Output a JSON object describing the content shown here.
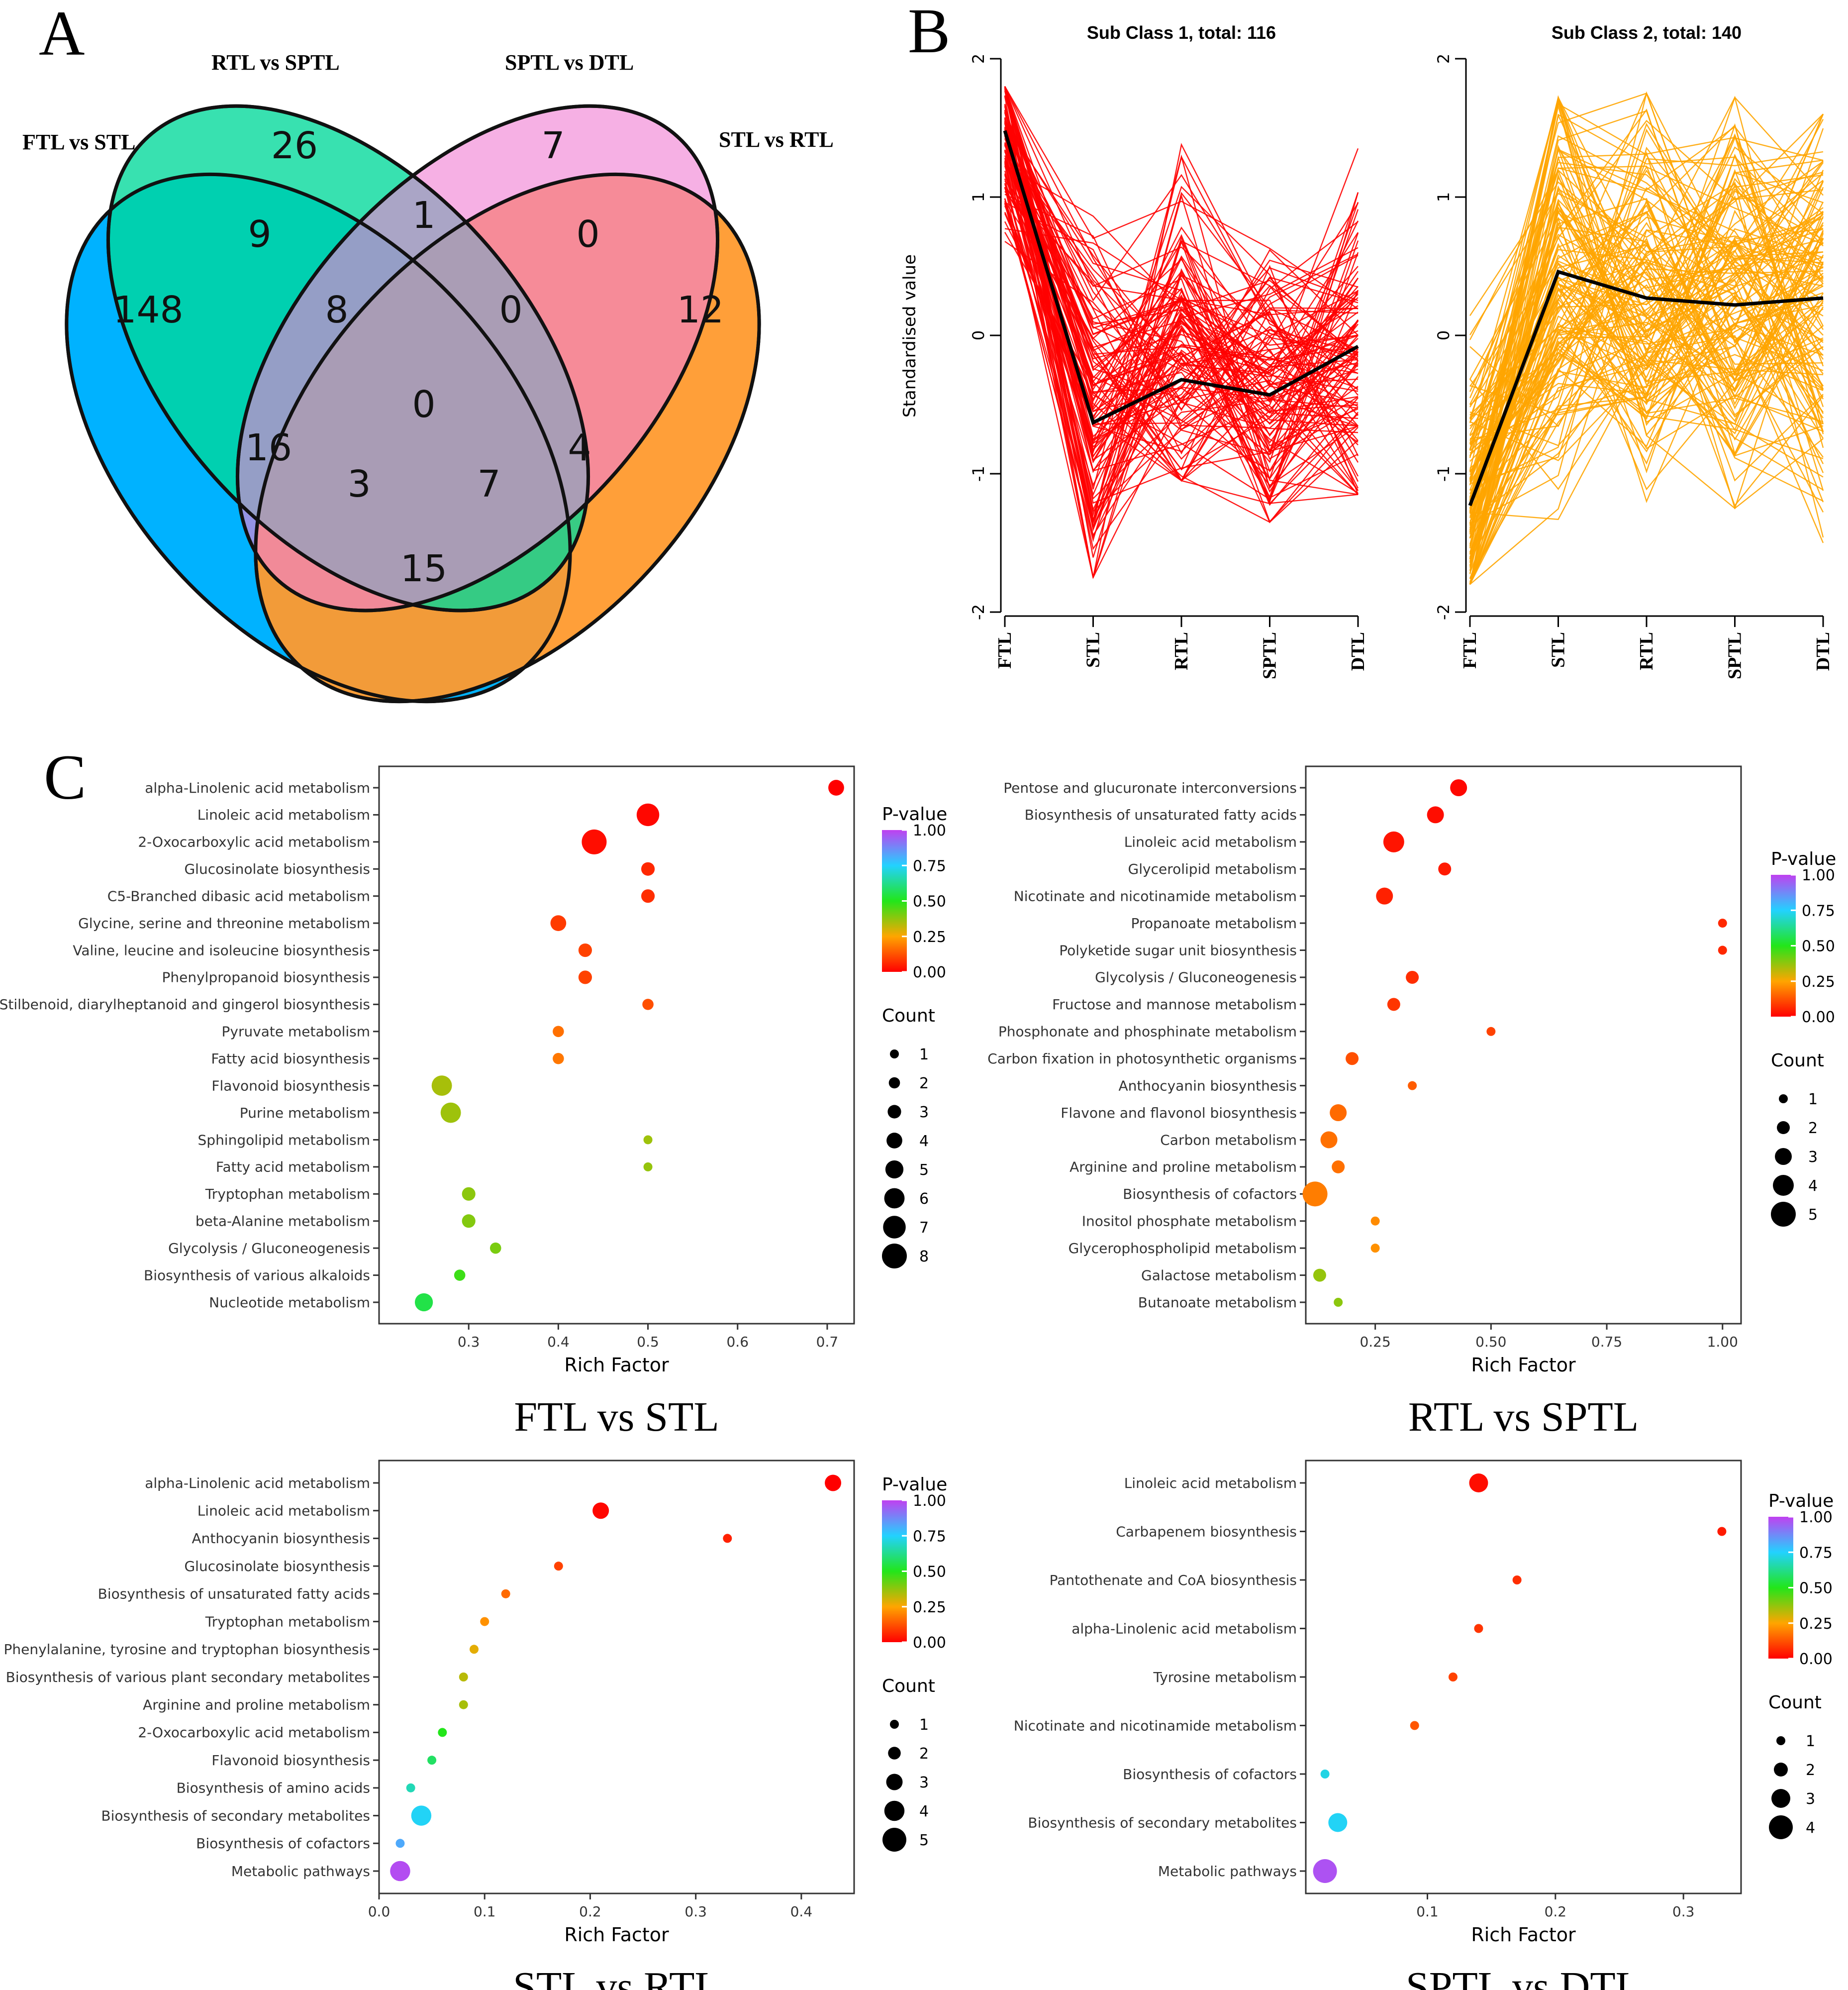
{
  "panel_labels": {
    "a": "A",
    "b": "B",
    "c": "C"
  },
  "venn": {
    "sets": [
      {
        "name": "FTL vs STL",
        "color": "#00b2ff"
      },
      {
        "name": "RTL vs SPTL",
        "color": "#00d99a"
      },
      {
        "name": "SPTL vs DTL",
        "color": "#f07fd3"
      },
      {
        "name": "STL vs RTL",
        "color": "#ff9a2e"
      }
    ],
    "counts": [
      "148",
      "26",
      "7",
      "12",
      "9",
      "1",
      "0",
      "8",
      "0",
      "0",
      "16",
      "4",
      "3",
      "7",
      "15"
    ]
  },
  "chart_data": [
    {
      "type": "line",
      "title": "Sub Class 1, total: 116",
      "ylabel": "Standardised value",
      "categories": [
        "FTL",
        "STL",
        "RTL",
        "SPTL",
        "DTL"
      ],
      "ylim": [
        -2,
        2
      ],
      "yticks": [
        "-2",
        "-1",
        "0",
        "1",
        "2"
      ],
      "line_color": "#ff0000",
      "n_lines": 116,
      "mean": [
        1.48,
        -0.63,
        -0.32,
        -0.43,
        -0.08
      ],
      "envelope": {
        "min": [
          0.6,
          -1.75,
          -1.05,
          -1.35,
          -1.15
        ],
        "max": [
          1.8,
          0.9,
          1.48,
          0.7,
          1.45
        ]
      }
    },
    {
      "type": "line",
      "title": "Sub Class 2, total: 140",
      "ylabel": "",
      "categories": [
        "FTL",
        "STL",
        "RTL",
        "SPTL",
        "DTL"
      ],
      "ylim": [
        -2,
        2
      ],
      "yticks": [
        "-2",
        "-1",
        "0",
        "1",
        "2"
      ],
      "line_color": "#ffa500",
      "n_lines": 140,
      "mean": [
        -1.23,
        0.46,
        0.27,
        0.22,
        0.27
      ],
      "envelope": {
        "min": [
          -1.8,
          -1.45,
          -1.2,
          -1.25,
          -1.5
        ],
        "max": [
          0.3,
          1.72,
          1.75,
          1.72,
          1.6
        ]
      }
    },
    {
      "type": "scatter",
      "title": "FTL vs STL",
      "xlabel": "Rich Factor",
      "xlim": [
        0.2,
        0.73
      ],
      "xticks": [
        0.3,
        0.4,
        0.5,
        0.6,
        0.7
      ],
      "xtick_labels": [
        "0.3",
        "0.4",
        "0.5",
        "0.6",
        "0.7"
      ],
      "legend_pvalue": {
        "title": "P-value",
        "ticks": [
          "1.00",
          "0.75",
          "0.50",
          "0.25",
          "0.00"
        ]
      },
      "legend_count": {
        "title": "Count",
        "values": [
          "1",
          "2",
          "3",
          "4",
          "5",
          "6",
          "7",
          "8"
        ]
      },
      "count_max": 8,
      "points": [
        {
          "term": "alpha-Linolenic acid metabolism",
          "x": 0.71,
          "count": 4,
          "p": 0.0
        },
        {
          "term": "Linoleic acid metabolism",
          "x": 0.5,
          "count": 7,
          "p": 0.01
        },
        {
          "term": "2-Oxocarboxylic acid metabolism",
          "x": 0.44,
          "count": 8,
          "p": 0.02
        },
        {
          "term": "Glucosinolate biosynthesis",
          "x": 0.5,
          "count": 3,
          "p": 0.06
        },
        {
          "term": "C5-Branched dibasic acid metabolism",
          "x": 0.5,
          "count": 3,
          "p": 0.07
        },
        {
          "term": "Glycine, serine and threonine metabolism",
          "x": 0.4,
          "count": 4,
          "p": 0.09
        },
        {
          "term": "Valine, leucine and isoleucine biosynthesis",
          "x": 0.43,
          "count": 3,
          "p": 0.1
        },
        {
          "term": "Phenylpropanoid biosynthesis",
          "x": 0.43,
          "count": 3,
          "p": 0.1
        },
        {
          "term": "Stilbenoid, diarylheptanoid and gingerol biosynthesis",
          "x": 0.5,
          "count": 2,
          "p": 0.12
        },
        {
          "term": "Pyruvate metabolism",
          "x": 0.4,
          "count": 2,
          "p": 0.17
        },
        {
          "term": "Fatty acid biosynthesis",
          "x": 0.4,
          "count": 2,
          "p": 0.18
        },
        {
          "term": "Flavonoid biosynthesis",
          "x": 0.27,
          "count": 6,
          "p": 0.35
        },
        {
          "term": "Purine metabolism",
          "x": 0.28,
          "count": 6,
          "p": 0.36
        },
        {
          "term": "Sphingolipid metabolism",
          "x": 0.5,
          "count": 1,
          "p": 0.36
        },
        {
          "term": "Fatty acid metabolism",
          "x": 0.5,
          "count": 1,
          "p": 0.37
        },
        {
          "term": "Tryptophan metabolism",
          "x": 0.3,
          "count": 3,
          "p": 0.38
        },
        {
          "term": "beta-Alanine metabolism",
          "x": 0.3,
          "count": 3,
          "p": 0.39
        },
        {
          "term": "Glycolysis / Gluconeogenesis",
          "x": 0.33,
          "count": 2,
          "p": 0.4
        },
        {
          "term": "Biosynthesis of various alkaloids",
          "x": 0.29,
          "count": 2,
          "p": 0.47
        },
        {
          "term": "Nucleotide metabolism",
          "x": 0.25,
          "count": 5,
          "p": 0.55
        }
      ]
    },
    {
      "type": "scatter",
      "title": "RTL vs SPTL",
      "xlabel": "Rich Factor",
      "xlim": [
        0.1,
        1.04
      ],
      "xticks": [
        0.25,
        0.5,
        0.75,
        1.0
      ],
      "xtick_labels": [
        "0.25",
        "0.50",
        "0.75",
        "1.00"
      ],
      "legend_pvalue": {
        "title": "P-value",
        "ticks": [
          "1.00",
          "0.75",
          "0.50",
          "0.25",
          "0.00"
        ]
      },
      "legend_count": {
        "title": "Count",
        "values": [
          "1",
          "2",
          "3",
          "4",
          "5"
        ]
      },
      "count_max": 5,
      "points": [
        {
          "term": "Pentose and glucuronate interconversions",
          "x": 0.43,
          "count": 3,
          "p": 0.01
        },
        {
          "term": "Biosynthesis of unsaturated fatty acids",
          "x": 0.38,
          "count": 3,
          "p": 0.02
        },
        {
          "term": "Linoleic acid metabolism",
          "x": 0.29,
          "count": 4,
          "p": 0.03
        },
        {
          "term": "Glycerolipid metabolism",
          "x": 0.4,
          "count": 2,
          "p": 0.04
        },
        {
          "term": "Nicotinate and nicotinamide metabolism",
          "x": 0.27,
          "count": 3,
          "p": 0.05
        },
        {
          "term": "Propanoate metabolism",
          "x": 1.0,
          "count": 1,
          "p": 0.06
        },
        {
          "term": "Polyketide sugar unit biosynthesis",
          "x": 1.0,
          "count": 1,
          "p": 0.06
        },
        {
          "term": "Glycolysis / Gluconeogenesis",
          "x": 0.33,
          "count": 2,
          "p": 0.07
        },
        {
          "term": "Fructose and mannose metabolism",
          "x": 0.29,
          "count": 2,
          "p": 0.08
        },
        {
          "term": "Phosphonate and phosphinate metabolism",
          "x": 0.5,
          "count": 1,
          "p": 0.1
        },
        {
          "term": "Carbon fixation in photosynthetic organisms",
          "x": 0.2,
          "count": 2,
          "p": 0.12
        },
        {
          "term": "Anthocyanin biosynthesis",
          "x": 0.33,
          "count": 1,
          "p": 0.14
        },
        {
          "term": "Flavone and flavonol biosynthesis",
          "x": 0.17,
          "count": 3,
          "p": 0.16
        },
        {
          "term": "Carbon metabolism",
          "x": 0.15,
          "count": 3,
          "p": 0.17
        },
        {
          "term": "Arginine and proline metabolism",
          "x": 0.17,
          "count": 2,
          "p": 0.17
        },
        {
          "term": "Biosynthesis of cofactors",
          "x": 0.12,
          "count": 5,
          "p": 0.19
        },
        {
          "term": "Inositol phosphate metabolism",
          "x": 0.25,
          "count": 1,
          "p": 0.21
        },
        {
          "term": "Glycerophospholipid metabolism",
          "x": 0.25,
          "count": 1,
          "p": 0.22
        },
        {
          "term": "Galactose metabolism",
          "x": 0.13,
          "count": 2,
          "p": 0.37
        },
        {
          "term": "Butanoate metabolism",
          "x": 0.17,
          "count": 1,
          "p": 0.38
        }
      ]
    },
    {
      "type": "scatter",
      "title": "STL vs RTL",
      "xlabel": "Rich Factor",
      "xlim": [
        0.0,
        0.45
      ],
      "xticks": [
        0.0,
        0.1,
        0.2,
        0.3,
        0.4
      ],
      "xtick_labels": [
        "0.0",
        "0.1",
        "0.2",
        "0.3",
        "0.4"
      ],
      "legend_pvalue": {
        "title": "P-value",
        "ticks": [
          "1.00",
          "0.75",
          "0.50",
          "0.25",
          "0.00"
        ]
      },
      "legend_count": {
        "title": "Count",
        "values": [
          "1",
          "2",
          "3",
          "4",
          "5"
        ]
      },
      "count_max": 5,
      "points": [
        {
          "term": "alpha-Linolenic acid metabolism",
          "x": 0.43,
          "count": 3,
          "p": 0.0
        },
        {
          "term": "Linoleic acid metabolism",
          "x": 0.21,
          "count": 3,
          "p": 0.01
        },
        {
          "term": "Anthocyanin biosynthesis",
          "x": 0.33,
          "count": 1,
          "p": 0.05
        },
        {
          "term": "Glucosinolate biosynthesis",
          "x": 0.17,
          "count": 1,
          "p": 0.1
        },
        {
          "term": "Biosynthesis of unsaturated fatty acids",
          "x": 0.12,
          "count": 1,
          "p": 0.16
        },
        {
          "term": "Tryptophan metabolism",
          "x": 0.1,
          "count": 1,
          "p": 0.22
        },
        {
          "term": "Phenylalanine, tyrosine and tryptophan biosynthesis",
          "x": 0.09,
          "count": 1,
          "p": 0.28
        },
        {
          "term": "Biosynthesis of various plant secondary metabolites",
          "x": 0.08,
          "count": 1,
          "p": 0.33
        },
        {
          "term": "Arginine and proline metabolism",
          "x": 0.08,
          "count": 1,
          "p": 0.35
        },
        {
          "term": "2-Oxocarboxylic acid metabolism",
          "x": 0.06,
          "count": 1,
          "p": 0.5
        },
        {
          "term": "Flavonoid biosynthesis",
          "x": 0.05,
          "count": 1,
          "p": 0.58
        },
        {
          "term": "Biosynthesis of amino acids",
          "x": 0.03,
          "count": 1,
          "p": 0.67
        },
        {
          "term": "Biosynthesis of secondary metabolites",
          "x": 0.04,
          "count": 4,
          "p": 0.74
        },
        {
          "term": "Biosynthesis of cofactors",
          "x": 0.02,
          "count": 1,
          "p": 0.82
        },
        {
          "term": "Metabolic pathways",
          "x": 0.02,
          "count": 4,
          "p": 0.98
        }
      ]
    },
    {
      "type": "scatter",
      "title": "SPTL vs DTL",
      "xlabel": "Rich Factor",
      "xlim": [
        0.005,
        0.345
      ],
      "xticks": [
        0.1,
        0.2,
        0.3
      ],
      "xtick_labels": [
        "0.1",
        "0.2",
        "0.3"
      ],
      "legend_pvalue": {
        "title": "P-value",
        "ticks": [
          "1.00",
          "0.75",
          "0.50",
          "0.25",
          "0.00"
        ]
      },
      "legend_count": {
        "title": "Count",
        "values": [
          "1",
          "2",
          "3",
          "4"
        ]
      },
      "count_max": 4,
      "points": [
        {
          "term": "Linoleic acid metabolism",
          "x": 0.14,
          "count": 3,
          "p": 0.02
        },
        {
          "term": "Carbapenem biosynthesis",
          "x": 0.33,
          "count": 1,
          "p": 0.04
        },
        {
          "term": "Pantothenate and CoA biosynthesis",
          "x": 0.17,
          "count": 1,
          "p": 0.07
        },
        {
          "term": "alpha-Linolenic acid metabolism",
          "x": 0.14,
          "count": 1,
          "p": 0.08
        },
        {
          "term": "Tyrosine metabolism",
          "x": 0.12,
          "count": 1,
          "p": 0.1
        },
        {
          "term": "Nicotinate and nicotinamide metabolism",
          "x": 0.09,
          "count": 1,
          "p": 0.13
        },
        {
          "term": "Biosynthesis of cofactors",
          "x": 0.02,
          "count": 1,
          "p": 0.72
        },
        {
          "term": "Biosynthesis of secondary metabolites",
          "x": 0.03,
          "count": 3,
          "p": 0.74
        },
        {
          "term": "Metabolic pathways",
          "x": 0.02,
          "count": 4,
          "p": 0.97
        }
      ]
    }
  ]
}
